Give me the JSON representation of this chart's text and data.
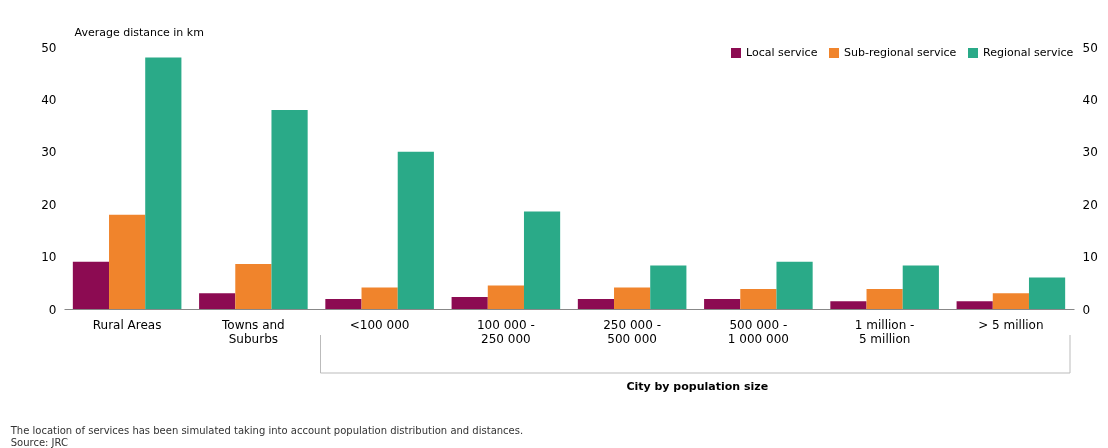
{
  "chart_data": {
    "type": "bar",
    "categories": [
      "Rural Areas",
      "Towns and\nSuburbs",
      "<100 000",
      "100 000 -\n250 000",
      "250 000 -\n500 000",
      "500 000 -\n1 000 000",
      "1 million -\n5 million",
      "> 5 million"
    ],
    "series": [
      {
        "name": "Local service",
        "color": "#8c0b52",
        "values": [
          9.0,
          3.0,
          1.9,
          2.3,
          1.9,
          1.9,
          1.5,
          1.5
        ]
      },
      {
        "name": "Sub-regional service",
        "color": "#f0842c",
        "values": [
          18.0,
          8.6,
          4.1,
          4.5,
          4.1,
          3.8,
          3.8,
          3.0
        ]
      },
      {
        "name": "Regional service",
        "color": "#2aaa88",
        "values": [
          48.0,
          38.0,
          30.0,
          18.6,
          8.3,
          9.0,
          8.3,
          6.0
        ]
      }
    ],
    "ylabel": "Average distance in km",
    "xlabel": "City by population size",
    "ylim": [
      0,
      50
    ],
    "yticks": [
      0,
      10,
      20,
      30,
      40,
      50
    ],
    "y2lim": [
      0,
      50
    ],
    "y2ticks": [
      0,
      10,
      20,
      30,
      40,
      50
    ],
    "legend": "top right",
    "annotations": [
      "The location of services has been simulated taking into account population distribution and distances.",
      "Source: JRC"
    ]
  }
}
